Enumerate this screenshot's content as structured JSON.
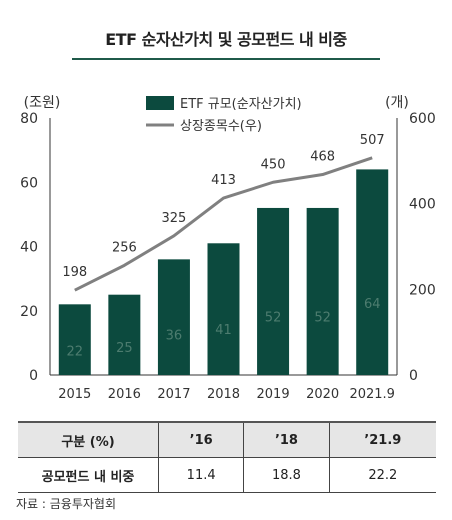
{
  "title": "ETF 순자산가치 및 공모펀드 내 비중",
  "chart_data": {
    "type": "bar",
    "categories": [
      "2015",
      "2016",
      "2017",
      "2018",
      "2019",
      "2020",
      "2021.9"
    ],
    "series": [
      {
        "name": "ETF 규모(순자산가치)",
        "kind": "bar",
        "axis": "left",
        "color": "#0c4a3e",
        "values": [
          22,
          25,
          36,
          41,
          52,
          52,
          64
        ]
      },
      {
        "name": "상장종목수(우)",
        "kind": "line",
        "axis": "right",
        "color": "#808080",
        "values": [
          198,
          256,
          325,
          413,
          450,
          468,
          507
        ]
      }
    ],
    "y_left": {
      "unit": "(조원)",
      "lim": [
        0,
        80
      ],
      "ticks": [
        0,
        20,
        40,
        60,
        80
      ]
    },
    "y_right": {
      "unit": "(개)",
      "lim": [
        0,
        600
      ],
      "ticks": [
        0,
        200,
        400,
        600
      ]
    },
    "legend_position": "top"
  },
  "table": {
    "headers": [
      "구분 (%)",
      "’16",
      "’18",
      "’21.9"
    ],
    "rows": [
      {
        "label": "공모펀드 내 비중",
        "values": [
          "11.4",
          "18.8",
          "22.2"
        ]
      }
    ]
  },
  "source": "자료 : 금융투자협회"
}
